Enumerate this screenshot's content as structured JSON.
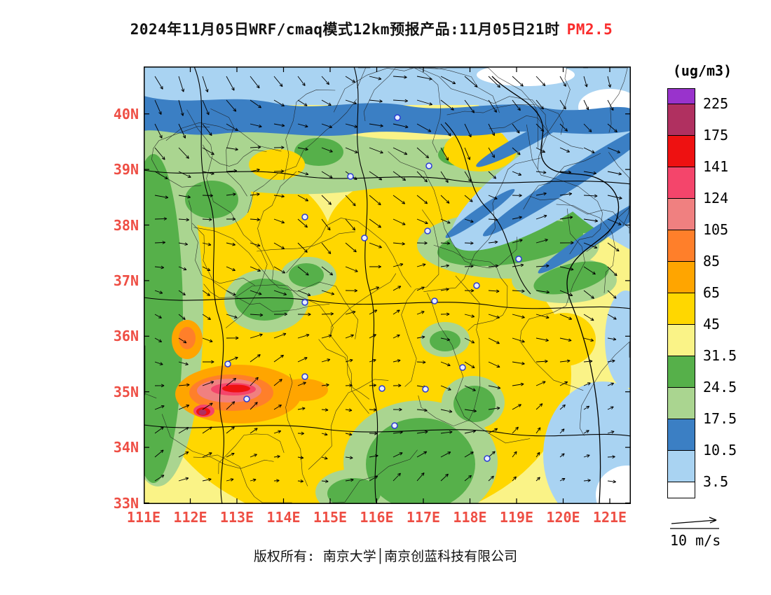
{
  "title": {
    "main": "2024年11月05日WRF/cmaq模式12km预报产品:11月05日21时",
    "pollutant": "PM2.5",
    "pollutant_color": "#fa2c2c"
  },
  "axes": {
    "lat_labels": [
      "40N",
      "39N",
      "38N",
      "37N",
      "36N",
      "35N",
      "34N",
      "33N"
    ],
    "lon_labels": [
      "111E",
      "112E",
      "113E",
      "114E",
      "115E",
      "116E",
      "117E",
      "118E",
      "119E",
      "120E",
      "121E"
    ],
    "label_color": "#ee4e44"
  },
  "legend": {
    "unit": "(ug/m3)",
    "levels": [
      "225",
      "175",
      "141",
      "124",
      "105",
      "85",
      "65",
      "45",
      "31.5",
      "24.5",
      "17.5",
      "10.5",
      "3.5"
    ],
    "colors": [
      "#9933cc",
      "#b03060",
      "#ee1111",
      "#f4456b",
      "#f08080",
      "#ff7f2a",
      "#ffa500",
      "#ffd700",
      "#faf387",
      "#56b04a",
      "#aad590",
      "#3b7fc4",
      "#a9d3f2",
      "#ffffff"
    ]
  },
  "wind_scale": {
    "label": "10 m/s"
  },
  "footer": {
    "text": "版权所有: 南京大学│南京创蓝科技有限公司"
  },
  "chart_data": {
    "type": "heatmap",
    "title": "2024年11月05日WRF/cmaq模式12km预报产品:11月05日21时 PM2.5",
    "unit": "ug/m3",
    "x_ticks": [
      "111E",
      "112E",
      "113E",
      "114E",
      "115E",
      "116E",
      "117E",
      "118E",
      "119E",
      "120E",
      "121E"
    ],
    "y_ticks": [
      "33N",
      "34N",
      "35N",
      "36N",
      "37N",
      "38N",
      "39N",
      "40N"
    ],
    "xlim": [
      "111E",
      "121.5E"
    ],
    "ylim": [
      "33N",
      "40.8N"
    ],
    "contour_levels": [
      3.5,
      10.5,
      17.5,
      24.5,
      31.5,
      45,
      65,
      85,
      105,
      124,
      141,
      175,
      225
    ],
    "colors_low_to_high": [
      "#ffffff",
      "#a9d3f2",
      "#3b7fc4",
      "#aad590",
      "#56b04a",
      "#faf387",
      "#ffd700",
      "#ffa500",
      "#ff7f2a",
      "#f08080",
      "#f4456b",
      "#ee1111",
      "#b03060",
      "#9933cc"
    ],
    "overlay": "wind vector field, reference arrow 10 m/s",
    "legend_position": "right",
    "features": [
      {
        "region": "northern edge ~39.5-40.8N and top-right offshore band",
        "value_range": "<17.5 (blues/white)"
      },
      {
        "region": "transition band ~39-40N",
        "value_range": "17.5-31.5 (greens)"
      },
      {
        "region": "central plain 33-38.5N, 111-119E",
        "value_range": "31.5-85 (yellows)"
      },
      {
        "region": "hotspot cluster 112-113.5E / 34.5-35.2N",
        "value_range": "85-225 (orange/red/maroon cores)"
      },
      {
        "region": "southeast coastal corner ~33-34.5N / 120-121.5E",
        "value_range": "<10.5 (light blue/white)"
      }
    ]
  }
}
